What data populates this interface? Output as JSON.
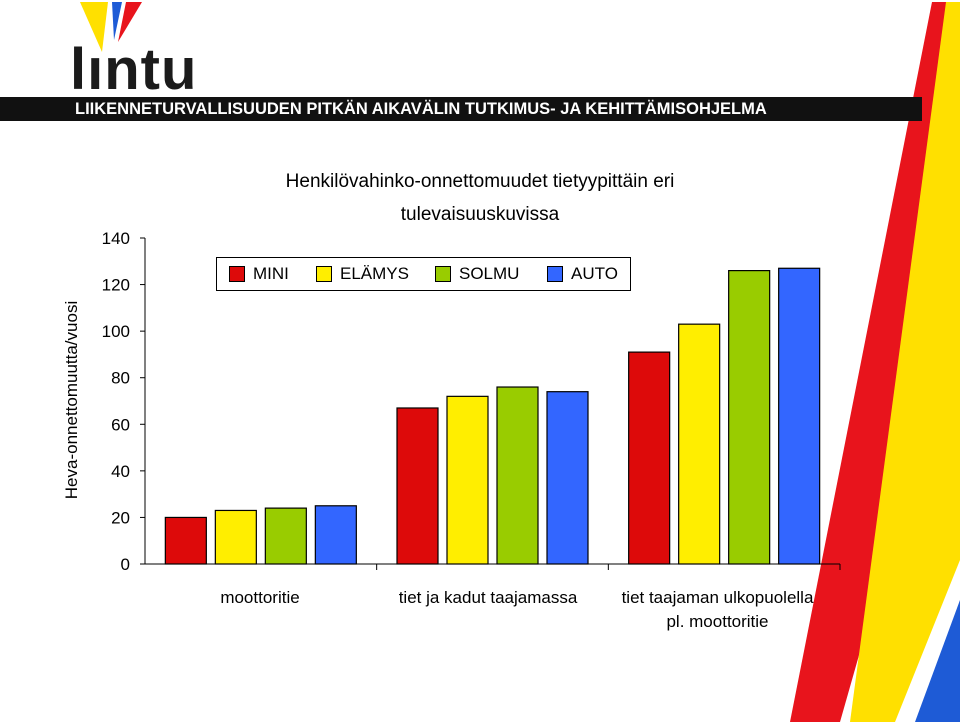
{
  "header": {
    "logo_text": "lıntu",
    "program_name": "LIIKENNETURVALLISUUDEN PITKÄN AIKAVÄLIN TUTKIMUS- JA KEHITTÄMISOHJELMA"
  },
  "colors": {
    "mini": "#dd0a0a",
    "elamys": "#ffee00",
    "solmu": "#99cc00",
    "auto": "#3366ff",
    "deco_red": "#e8141c",
    "deco_yellow": "#ffe000",
    "deco_blue": "#1e5bd6"
  },
  "chart_data": {
    "type": "bar",
    "title_line1": "Henkilövahinko-onnettomuudet tietyypittäin eri",
    "title_line2": "tulevaisuuskuvissa",
    "ylabel": "Heva-onnettomuutta/vuosi",
    "ylim": [
      0,
      140
    ],
    "yticks": [
      "0",
      "20",
      "40",
      "60",
      "80",
      "100",
      "120",
      "140"
    ],
    "categories": [
      {
        "line1": "moottoritie",
        "line2": ""
      },
      {
        "line1": "tiet ja kadut taajamassa",
        "line2": ""
      },
      {
        "line1": "tiet taajaman ulkopuolella",
        "line2": "pl. moottoritie"
      }
    ],
    "series": [
      {
        "name": "MINI",
        "values": [
          20,
          67,
          91
        ]
      },
      {
        "name": "ELÄMYS",
        "values": [
          23,
          72,
          103
        ]
      },
      {
        "name": "SOLMU",
        "values": [
          24,
          76,
          126
        ]
      },
      {
        "name": "AUTO",
        "values": [
          25,
          74,
          127
        ]
      }
    ],
    "legend_position": "top-left"
  }
}
